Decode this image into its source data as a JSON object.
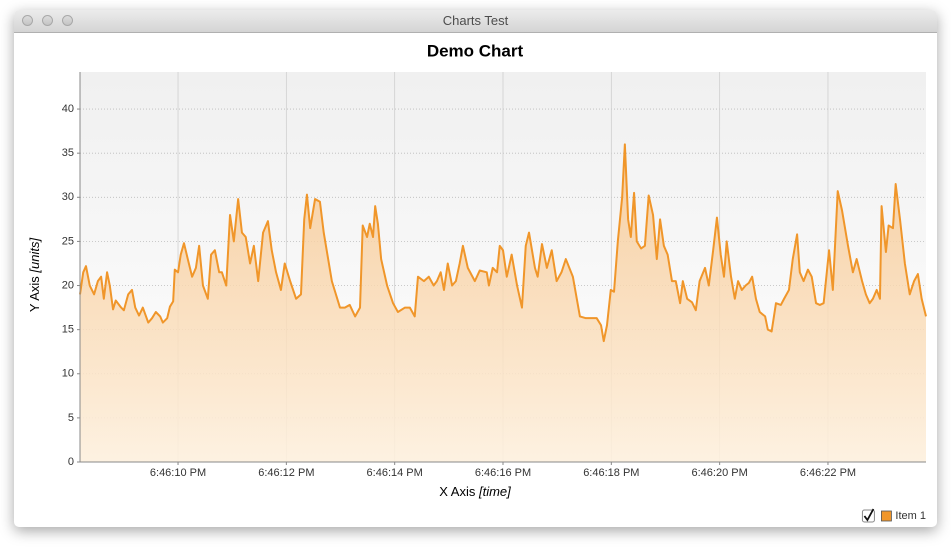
{
  "window": {
    "title": "Charts Test"
  },
  "chart_data": {
    "type": "area",
    "title": "Demo Chart",
    "x_label": "X Axis",
    "x_unit": "[time]",
    "y_label": "Y Axis",
    "y_unit": "[units]",
    "x": [
      8.19,
      8.25,
      8.3,
      8.37,
      8.45,
      8.52,
      8.58,
      8.63,
      8.69,
      8.74,
      8.8,
      8.85,
      8.95,
      9.0,
      9.08,
      9.15,
      9.21,
      9.28,
      9.35,
      9.45,
      9.52,
      9.59,
      9.67,
      9.72,
      9.8,
      9.85,
      9.91,
      9.94,
      10.0,
      10.05,
      10.11,
      10.18,
      10.26,
      10.33,
      10.39,
      10.46,
      10.55,
      10.61,
      10.68,
      10.76,
      10.81,
      10.89,
      10.96,
      11.03,
      11.11,
      11.18,
      11.25,
      11.33,
      11.4,
      11.48,
      11.57,
      11.66,
      11.73,
      11.81,
      11.9,
      11.97,
      12.07,
      12.18,
      12.27,
      12.33,
      12.38,
      12.44,
      12.53,
      12.62,
      12.69,
      12.84,
      12.99,
      13.08,
      13.17,
      13.27,
      13.36,
      13.41,
      13.49,
      13.54,
      13.6,
      13.64,
      13.69,
      13.75,
      13.86,
      13.97,
      14.06,
      14.19,
      14.28,
      14.37,
      14.43,
      14.54,
      14.63,
      14.72,
      14.78,
      14.85,
      14.91,
      14.98,
      15.06,
      15.13,
      15.2,
      15.26,
      15.35,
      15.48,
      15.57,
      15.7,
      15.74,
      15.81,
      15.89,
      15.94,
      16.0,
      16.07,
      16.16,
      16.26,
      16.35,
      16.42,
      16.48,
      16.59,
      16.64,
      16.72,
      16.81,
      16.9,
      16.99,
      17.08,
      17.16,
      17.29,
      17.42,
      17.53,
      17.73,
      17.81,
      17.86,
      17.92,
      17.99,
      18.05,
      18.12,
      18.2,
      18.25,
      18.31,
      18.36,
      18.42,
      18.47,
      18.55,
      18.62,
      18.69,
      18.77,
      18.84,
      18.9,
      18.97,
      19.04,
      19.12,
      19.19,
      19.27,
      19.32,
      19.4,
      19.49,
      19.56,
      19.63,
      19.73,
      19.8,
      19.88,
      19.95,
      20.02,
      20.08,
      20.13,
      20.21,
      20.28,
      20.34,
      20.41,
      20.48,
      20.54,
      20.6,
      20.67,
      20.74,
      20.84,
      20.89,
      20.96,
      21.04,
      21.13,
      21.19,
      21.28,
      21.35,
      21.43,
      21.48,
      21.55,
      21.63,
      21.7,
      21.78,
      21.85,
      21.92,
      22.02,
      22.09,
      22.18,
      22.26,
      22.37,
      22.46,
      22.53,
      22.63,
      22.7,
      22.77,
      22.83,
      22.9,
      22.96,
      22.99,
      23.07,
      23.12,
      23.2,
      23.25,
      23.33,
      23.42,
      23.51,
      23.59,
      23.66,
      23.73,
      23.81
    ],
    "series": [
      {
        "name": "Item 1",
        "color": "#f0962a",
        "values": [
          19,
          21.5,
          22.2,
          20,
          19,
          20.5,
          21,
          18.5,
          21.5,
          20,
          17.3,
          18.3,
          17.5,
          17.2,
          19,
          19.5,
          17.5,
          16.6,
          17.5,
          15.8,
          16.3,
          17,
          16.5,
          15.8,
          16.3,
          17.6,
          18.2,
          21.8,
          21.5,
          23.5,
          24.8,
          23,
          21,
          22,
          24.5,
          20,
          18.5,
          23.5,
          24,
          21.5,
          21.5,
          20,
          28,
          25,
          29.8,
          26,
          25.5,
          22.5,
          24.5,
          20.5,
          26,
          27.3,
          24,
          21.5,
          19.5,
          22.5,
          20.5,
          18.5,
          19,
          27.5,
          30.3,
          26.5,
          29.8,
          29.5,
          26,
          20.5,
          17.5,
          17.5,
          17.8,
          16.5,
          17.5,
          26.8,
          25.5,
          27,
          25.5,
          29,
          27,
          23,
          20,
          18,
          17,
          17.5,
          17.5,
          16.5,
          21,
          20.5,
          21,
          20,
          20.5,
          21.5,
          19.5,
          22.5,
          20,
          20.5,
          22.5,
          24.5,
          22,
          20.5,
          21.7,
          21.5,
          20,
          22,
          21.5,
          24.5,
          24,
          21,
          23.5,
          20,
          17.5,
          24.5,
          26,
          22,
          21,
          24.7,
          22,
          24,
          20.5,
          21.5,
          23,
          21,
          16.5,
          16.3,
          16.3,
          15.5,
          13.7,
          15.5,
          19.5,
          19.3,
          25,
          30,
          36,
          27.5,
          25.5,
          30.5,
          25,
          24.2,
          24.5,
          30.2,
          28,
          23,
          27.5,
          24.5,
          23.5,
          20.5,
          20.5,
          18,
          20.5,
          18.5,
          18.1,
          17.2,
          20.5,
          22,
          20,
          24,
          27.7,
          23.5,
          21,
          25,
          21,
          18.5,
          20.5,
          19.5,
          20,
          20.3,
          21,
          18.5,
          17,
          16.5,
          15,
          14.8,
          18,
          17.8,
          18.5,
          19.5,
          23,
          25.8,
          21.5,
          20.5,
          21.8,
          21,
          18,
          17.8,
          18,
          24,
          19.5,
          30.7,
          28.5,
          24.5,
          21.5,
          23,
          20.5,
          19,
          18,
          18.5,
          19.5,
          18.5,
          29,
          23.8,
          26.8,
          26.5,
          31.5,
          27.5,
          22.5,
          19,
          20.5,
          21.3,
          18.5,
          16.5
        ]
      }
    ],
    "xlim": [
      8.19,
      23.81
    ],
    "xticks": [
      {
        "value": 10,
        "label": "6:46:10 PM"
      },
      {
        "value": 12,
        "label": "6:46:12 PM"
      },
      {
        "value": 14,
        "label": "6:46:14 PM"
      },
      {
        "value": 16,
        "label": "6:46:16 PM"
      },
      {
        "value": 18,
        "label": "6:46:18 PM"
      },
      {
        "value": 20,
        "label": "6:46:20 PM"
      },
      {
        "value": 22,
        "label": "6:46:22 PM"
      }
    ],
    "ylim": [
      0,
      44.2
    ],
    "yticks": [
      0,
      5,
      10,
      15,
      20,
      25,
      30,
      35,
      40
    ],
    "grid": true,
    "legend": "bottom-right"
  }
}
